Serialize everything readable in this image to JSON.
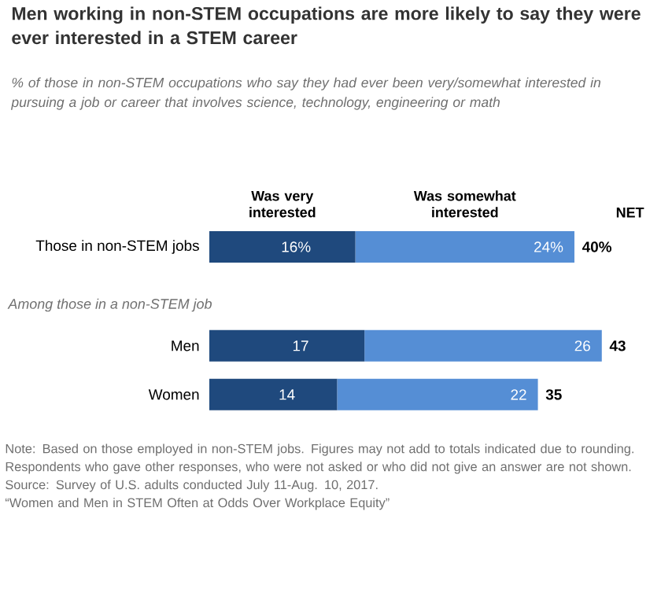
{
  "chart_data": {
    "type": "bar",
    "orientation": "horizontal",
    "stacked": true,
    "legend": "top",
    "title": "Men working in non-STEM occupations are more likely to say they were ever interested in a STEM career",
    "subtitle": "% of those in non-STEM occupations who say they had ever been very/somewhat interested in pursuing a job or career that involves science, technology, engineering or math",
    "categories": [
      "Those in non-STEM jobs",
      "Men",
      "Women"
    ],
    "series": [
      {
        "name": "Was very interested",
        "color": "#1f497d",
        "values": [
          16,
          17,
          14
        ],
        "value_labels": [
          "16%",
          "17",
          "14"
        ]
      },
      {
        "name": "Was somewhat interested",
        "color": "#558ed5",
        "values": [
          24,
          26,
          22
        ],
        "value_labels": [
          "24%",
          "26",
          "22"
        ]
      }
    ],
    "totals": [
      "40%",
      "43",
      "35"
    ],
    "annotations": [
      "Among those in a non-STEM job",
      "NET",
      "Note: Based on those employed in non-STEM jobs. Figures may not add to totals indicated due to rounding. Respondents who gave other responses, who were not asked or who did not give an answer are not shown.",
      "Source: Survey of U.S. adults conducted July 11-Aug. 10, 2017.",
      "“Women and Men in STEM Often at Odds Over Workplace Equity”"
    ]
  }
}
